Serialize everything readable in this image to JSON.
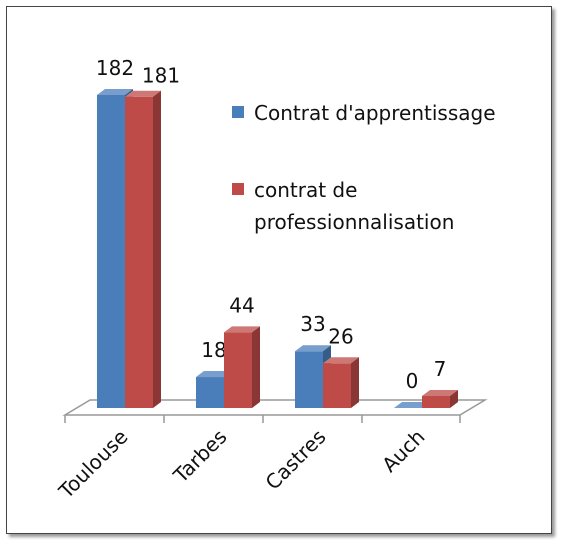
{
  "chart_data": {
    "type": "bar3d",
    "categories": [
      "Toulouse",
      "Tarbes",
      "Castres",
      "Auch"
    ],
    "series": [
      {
        "name": "Contrat d'apprentissage",
        "color": "#4a7ebb",
        "values": [
          182,
          18,
          33,
          0
        ]
      },
      {
        "name": "contrat de professionnalisation",
        "color": "#be4b48",
        "values": [
          181,
          44,
          26,
          7
        ]
      }
    ],
    "legend": "right"
  }
}
